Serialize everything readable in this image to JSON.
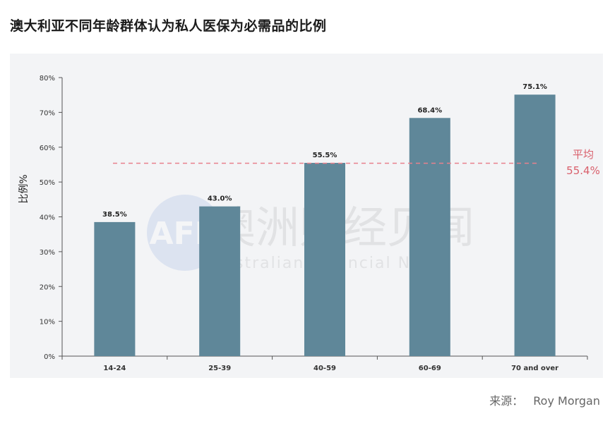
{
  "title": "澳大利亚不同年龄群体认为私人医保为必需品的比例",
  "source": {
    "label": "来源：",
    "value": "Roy Morgan"
  },
  "watermark": {
    "logo": "AFN",
    "cn": "澳洲财经见闻",
    "en": "Australian Financial News"
  },
  "colors": {
    "bar": "#5f8799",
    "average_line": "#e8808c",
    "average_text": "#d9606c",
    "axis_text": "#333333"
  },
  "chart_data": {
    "type": "bar",
    "title": "澳大利亚不同年龄群体认为私人医保为必需品的比例",
    "xlabel": "",
    "ylabel": "比例%",
    "categories": [
      "14-24",
      "25-39",
      "40-59",
      "60-69",
      "70 and over"
    ],
    "values": [
      38.5,
      43.0,
      55.5,
      68.4,
      75.1
    ],
    "value_labels": [
      "38.5%",
      "43.0%",
      "55.5%",
      "68.4%",
      "75.1%"
    ],
    "ylim": [
      0,
      80
    ],
    "yticks": [
      0,
      10,
      20,
      30,
      40,
      50,
      60,
      70,
      80
    ],
    "ytick_labels": [
      "0%",
      "10%",
      "20%",
      "30%",
      "40%",
      "50%",
      "60%",
      "70%",
      "80%"
    ],
    "grid": false,
    "average": {
      "value": 55.4,
      "label": "平均",
      "value_label": "55.4%"
    }
  }
}
